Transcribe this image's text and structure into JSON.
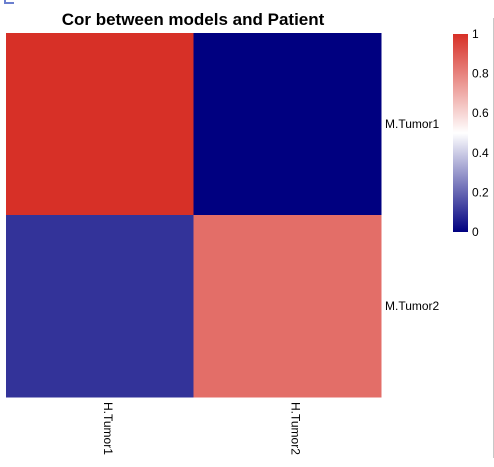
{
  "chart_data": {
    "type": "heatmap",
    "title": "Cor between models and Patient",
    "rows": [
      "M.Tumor1",
      "M.Tumor2"
    ],
    "columns": [
      "H.Tumor1",
      "H.Tumor2"
    ],
    "values": [
      [
        1.0,
        0.0
      ],
      [
        0.1,
        0.85
      ]
    ],
    "legend": {
      "placement": "right",
      "min": 0,
      "max": 1,
      "ticks": [
        "1",
        "0.8",
        "0.6",
        "0.4",
        "0.2",
        "0"
      ],
      "tick_values": [
        1,
        0.8,
        0.6,
        0.4,
        0.2,
        0
      ],
      "colors": [
        "#000080",
        "#ffffff",
        "#d73027"
      ]
    },
    "grid": false
  }
}
